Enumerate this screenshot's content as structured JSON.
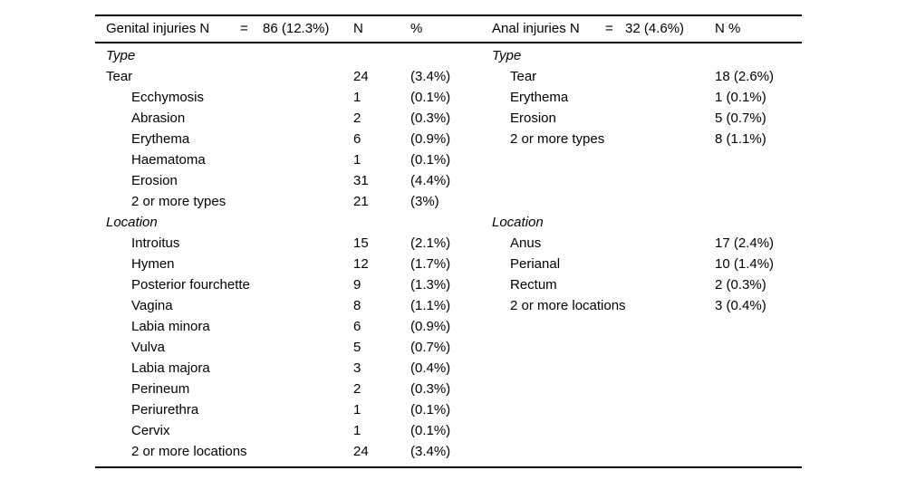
{
  "page": {
    "background_color": "#ffffff",
    "text_color": "#000000",
    "rule_color": "#000000"
  },
  "table": {
    "left": {
      "header": {
        "title": "Genital injuries N",
        "equals": "=",
        "total": "86 (12.3%)",
        "col_n": "N",
        "col_pct": "%"
      },
      "rows": [
        {
          "label": "Type",
          "style": "section",
          "n": "",
          "pct": ""
        },
        {
          "label": "Tear",
          "style": "base",
          "n": "24",
          "pct": "(3.4%)"
        },
        {
          "label": "Ecchymosis",
          "style": "indent",
          "n": "1",
          "pct": "(0.1%)"
        },
        {
          "label": "Abrasion",
          "style": "indent",
          "n": "2",
          "pct": "(0.3%)"
        },
        {
          "label": "Erythema",
          "style": "indent",
          "n": "6",
          "pct": "(0.9%)"
        },
        {
          "label": "Haematoma",
          "style": "indent",
          "n": "1",
          "pct": "(0.1%)"
        },
        {
          "label": "Erosion",
          "style": "indent",
          "n": "31",
          "pct": "(4.4%)"
        },
        {
          "label": "2 or more types",
          "style": "indent",
          "n": "21",
          "pct": "(3%)"
        },
        {
          "label": "Location",
          "style": "section",
          "n": "",
          "pct": ""
        },
        {
          "label": "Introitus",
          "style": "indent",
          "n": "15",
          "pct": "(2.1%)"
        },
        {
          "label": "Hymen",
          "style": "indent",
          "n": "12",
          "pct": "(1.7%)"
        },
        {
          "label": "Posterior fourchette",
          "style": "indent",
          "n": "9",
          "pct": "(1.3%)"
        },
        {
          "label": "Vagina",
          "style": "indent",
          "n": "8",
          "pct": "(1.1%)"
        },
        {
          "label": "Labia minora",
          "style": "indent",
          "n": "6",
          "pct": "(0.9%)"
        },
        {
          "label": "Vulva",
          "style": "indent",
          "n": "5",
          "pct": "(0.7%)"
        },
        {
          "label": "Labia majora",
          "style": "indent",
          "n": "3",
          "pct": "(0.4%)"
        },
        {
          "label": "Perineum",
          "style": "indent",
          "n": "2",
          "pct": "(0.3%)"
        },
        {
          "label": "Periurethra",
          "style": "indent",
          "n": "1",
          "pct": "(0.1%)"
        },
        {
          "label": "Cervix",
          "style": "indent",
          "n": "1",
          "pct": "(0.1%)"
        },
        {
          "label": "2 or more locations",
          "style": "indent",
          "n": "24",
          "pct": "(3.4%)"
        }
      ]
    },
    "right": {
      "header": {
        "title": "Anal injuries N",
        "equals": "=",
        "total": "32 (4.6%)",
        "col_npct": "N %"
      },
      "rows": [
        {
          "label": "Type",
          "style": "section",
          "value": ""
        },
        {
          "label": "Tear",
          "style": "indent",
          "value": "18 (2.6%)"
        },
        {
          "label": "Erythema",
          "style": "indent",
          "value": "1 (0.1%)"
        },
        {
          "label": "Erosion",
          "style": "indent",
          "value": "5 (0.7%)"
        },
        {
          "label": "2 or more types",
          "style": "indent",
          "value": "8 (1.1%)"
        },
        {
          "label": "",
          "style": "blank",
          "value": ""
        },
        {
          "label": "",
          "style": "blank",
          "value": ""
        },
        {
          "label": "",
          "style": "blank",
          "value": ""
        },
        {
          "label": "Location",
          "style": "section",
          "value": ""
        },
        {
          "label": "Anus",
          "style": "indent",
          "value": "17 (2.4%)"
        },
        {
          "label": "Perianal",
          "style": "indent",
          "value": "10 (1.4%)"
        },
        {
          "label": "Rectum",
          "style": "indent",
          "value": "2 (0.3%)"
        },
        {
          "label": "2 or more locations",
          "style": "indent",
          "value": "3 (0.4%)"
        },
        {
          "label": "",
          "style": "blank",
          "value": ""
        },
        {
          "label": "",
          "style": "blank",
          "value": ""
        },
        {
          "label": "",
          "style": "blank",
          "value": ""
        },
        {
          "label": "",
          "style": "blank",
          "value": ""
        },
        {
          "label": "",
          "style": "blank",
          "value": ""
        },
        {
          "label": "",
          "style": "blank",
          "value": ""
        },
        {
          "label": "",
          "style": "blank",
          "value": ""
        }
      ]
    }
  }
}
